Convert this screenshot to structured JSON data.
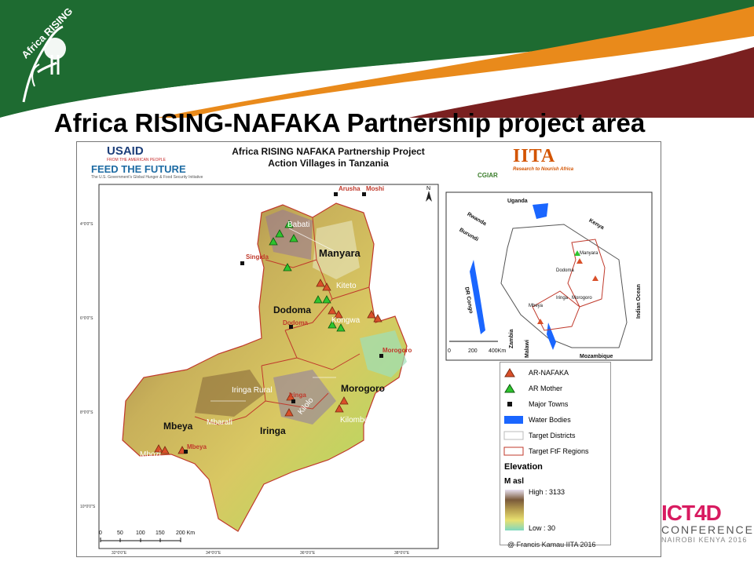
{
  "slide": {
    "title": "Africa RISING-NAFAKA Partnership project area"
  },
  "branding": {
    "logo_text": "Africa RISING"
  },
  "map": {
    "title_line1": "Africa RISING NAFAKA Partnership Project",
    "title_line2": "Action Villages  in Tanzania",
    "logos": {
      "usaid": "USAID",
      "usaid_tag": "FROM THE AMERICAN PEOPLE",
      "ftf": "FEED THE FUTURE",
      "ftf_tag": "The U.S. Government's Global Hunger & Food Security Initiative",
      "cgiar": "CGIAR",
      "iita": "IITA",
      "iita_tag": "Research to Nourish Africa"
    },
    "regions": [
      "Manyara",
      "Dodoma",
      "Morogoro",
      "Iringa",
      "Mbeya"
    ],
    "districts": [
      "Babati",
      "Kiteto",
      "Kongwa",
      "Iringa Rural",
      "Kilolo",
      "Mbarali",
      "Kilombero",
      "Mbozi"
    ],
    "towns": [
      "Arusha",
      "Moshi",
      "Singida",
      "Dodoma",
      "Morogoro",
      "Iringa",
      "Mbeya"
    ],
    "lat_labels": [
      "4°0'0\"S",
      "6°0'0\"S",
      "8°0'0\"S",
      "10°0'0\"S"
    ],
    "lon_labels": [
      "32°0'0\"E",
      "34°0'0\"E",
      "36°0'0\"E",
      "38°0'0\"E"
    ],
    "scalebar": {
      "ticks": [
        "0",
        "50",
        "100",
        "150",
        "200 Km"
      ]
    },
    "north": "N"
  },
  "inset": {
    "countries": [
      "Uganda",
      "Rwanda",
      "Burundi",
      "Kenya",
      "DR Congo",
      "Zambia",
      "Malawi",
      "Mozambique",
      "Indian Ocean"
    ],
    "places": [
      "Manyara",
      "Dodoma",
      "Mbeya",
      "Iringa",
      "Morogoro"
    ],
    "scale": [
      "0",
      "200",
      "400Km"
    ]
  },
  "legend": {
    "items": [
      "AR-NAFAKA",
      "AR Mother",
      "Major Towns",
      "Water Bodies",
      "Target Districts",
      "Target FtF Regions"
    ],
    "elevation_title": "Elevation",
    "unit": "M asl",
    "high": "High : 3133",
    "low": "Low : 30"
  },
  "credit": "@ Francis Kamau IITA 2016",
  "footer": {
    "ict_big": "ICT4D",
    "conference": "CONFERENCE",
    "place": "NAIROBI KENYA 2016"
  },
  "colors": {
    "banner_green": "#1e6b31",
    "banner_orange": "#e98a1b",
    "banner_maroon": "#7a2020",
    "ar_nafaka": "#d9502a",
    "ar_mother": "#2ec42e",
    "region_border": "#c0392b"
  }
}
